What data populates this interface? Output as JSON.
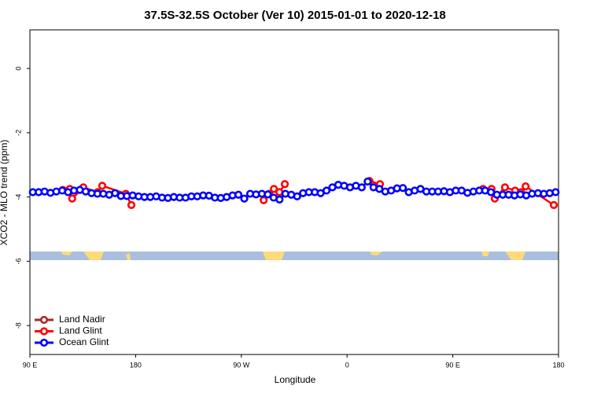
{
  "chart_data": {
    "type": "line",
    "title": "37.5S-32.5S October (Ver 10)   2015-01-01 to 2020-12-18",
    "x_label": "Longitude",
    "y_label": "XCO2 - MLO trend (ppm)",
    "xlim": [
      90,
      540
    ],
    "ylim": [
      -8.9,
      1.2
    ],
    "xticks": [
      {
        "value": 90,
        "label": "90 E"
      },
      180,
      {
        "value": 270,
        "label": "90 W"
      },
      {
        "value": 360,
        "label": "0"
      },
      {
        "value": 450,
        "label": "90 E"
      },
      {
        "value": 540,
        "label": "180"
      }
    ],
    "yticks": [
      0,
      -2,
      -4,
      -6,
      -8
    ],
    "legend": "bottom-left",
    "series": [
      {
        "name": "Land Nadir",
        "color": "#a52a2a",
        "x": [],
        "values": []
      },
      {
        "name": "Land Glint",
        "color": "#ff0000",
        "x": [
          118,
          124,
          126,
          135.5,
          147.6,
          151.6,
          171.7,
          176.4,
          null,
          289,
          293.7,
          297.7,
          302.4,
          307,
          null,
          379,
          388,
          null,
          475.7,
          483,
          485.7,
          494.4,
          503,
          508,
          512,
          536
        ],
        "values": [
          -3.78,
          -3.75,
          -4.05,
          -3.7,
          -3.85,
          -3.65,
          -3.9,
          -4.25,
          null,
          -4.1,
          -3.9,
          -3.75,
          -3.85,
          -3.6,
          null,
          -3.5,
          -3.6,
          null,
          -3.75,
          -3.75,
          -4.05,
          -3.7,
          -3.8,
          -3.85,
          -3.67,
          -4.25
        ]
      },
      {
        "name": "Ocean Glint",
        "color": "#0000ff",
        "x": [
          92.5,
          97.5,
          102.5,
          107.5,
          112.5,
          117.5,
          122.5,
          127.5,
          132.5,
          137.5,
          142.5,
          147.5,
          152.5,
          157.5,
          162.5,
          167.5,
          172.5,
          177.5,
          182.5,
          187.5,
          192.5,
          197.5,
          202.5,
          207.5,
          212.5,
          217.5,
          222.5,
          227.5,
          232.5,
          237.5,
          242.5,
          247.5,
          252.5,
          257.5,
          262.5,
          267.5,
          272.5,
          277.5,
          282.5,
          287.5,
          292.5,
          297.5,
          302.5,
          307.5,
          312.5,
          317.5,
          322.5,
          327.5,
          332.5,
          337.5,
          342.5,
          347.5,
          352.5,
          357.5,
          362.5,
          367.5,
          372.5,
          377.5,
          382.5,
          387.5,
          392.5,
          397.5,
          402.5,
          407.5,
          412.5,
          417.5,
          422.5,
          427.5,
          432.5,
          437.5,
          442.5,
          447.5,
          452.5,
          457.5,
          462.5,
          467.5,
          472.5,
          477.5,
          482.5,
          487.5,
          492.5,
          497.5,
          502.5,
          507.5,
          512.5,
          517.5,
          522.5,
          527.5,
          532.5,
          537.5
        ],
        "values": [
          -3.85,
          -3.85,
          -3.83,
          -3.87,
          -3.83,
          -3.8,
          -3.85,
          -3.8,
          -3.78,
          -3.83,
          -3.88,
          -3.9,
          -3.9,
          -3.93,
          -3.88,
          -3.97,
          -3.97,
          -3.95,
          -3.98,
          -4.0,
          -4.0,
          -3.98,
          -4.02,
          -4.03,
          -4.0,
          -4.02,
          -4.02,
          -3.98,
          -3.98,
          -3.95,
          -3.96,
          -4.02,
          -4.03,
          -4.0,
          -3.95,
          -3.93,
          -4.05,
          -3.9,
          -3.92,
          -3.9,
          -3.92,
          -4.02,
          -4.08,
          -3.9,
          -3.93,
          -3.98,
          -3.88,
          -3.85,
          -3.85,
          -3.88,
          -3.8,
          -3.7,
          -3.62,
          -3.65,
          -3.7,
          -3.65,
          -3.7,
          -3.52,
          -3.7,
          -3.75,
          -3.83,
          -3.8,
          -3.73,
          -3.72,
          -3.85,
          -3.8,
          -3.75,
          -3.83,
          -3.83,
          -3.83,
          -3.82,
          -3.85,
          -3.8,
          -3.8,
          -3.87,
          -3.83,
          -3.8,
          -3.8,
          -3.85,
          -3.93,
          -3.93,
          -3.93,
          -3.95,
          -3.92,
          -3.95,
          -3.9,
          -3.88,
          -3.9,
          -3.88,
          -3.85
        ]
      }
    ]
  }
}
